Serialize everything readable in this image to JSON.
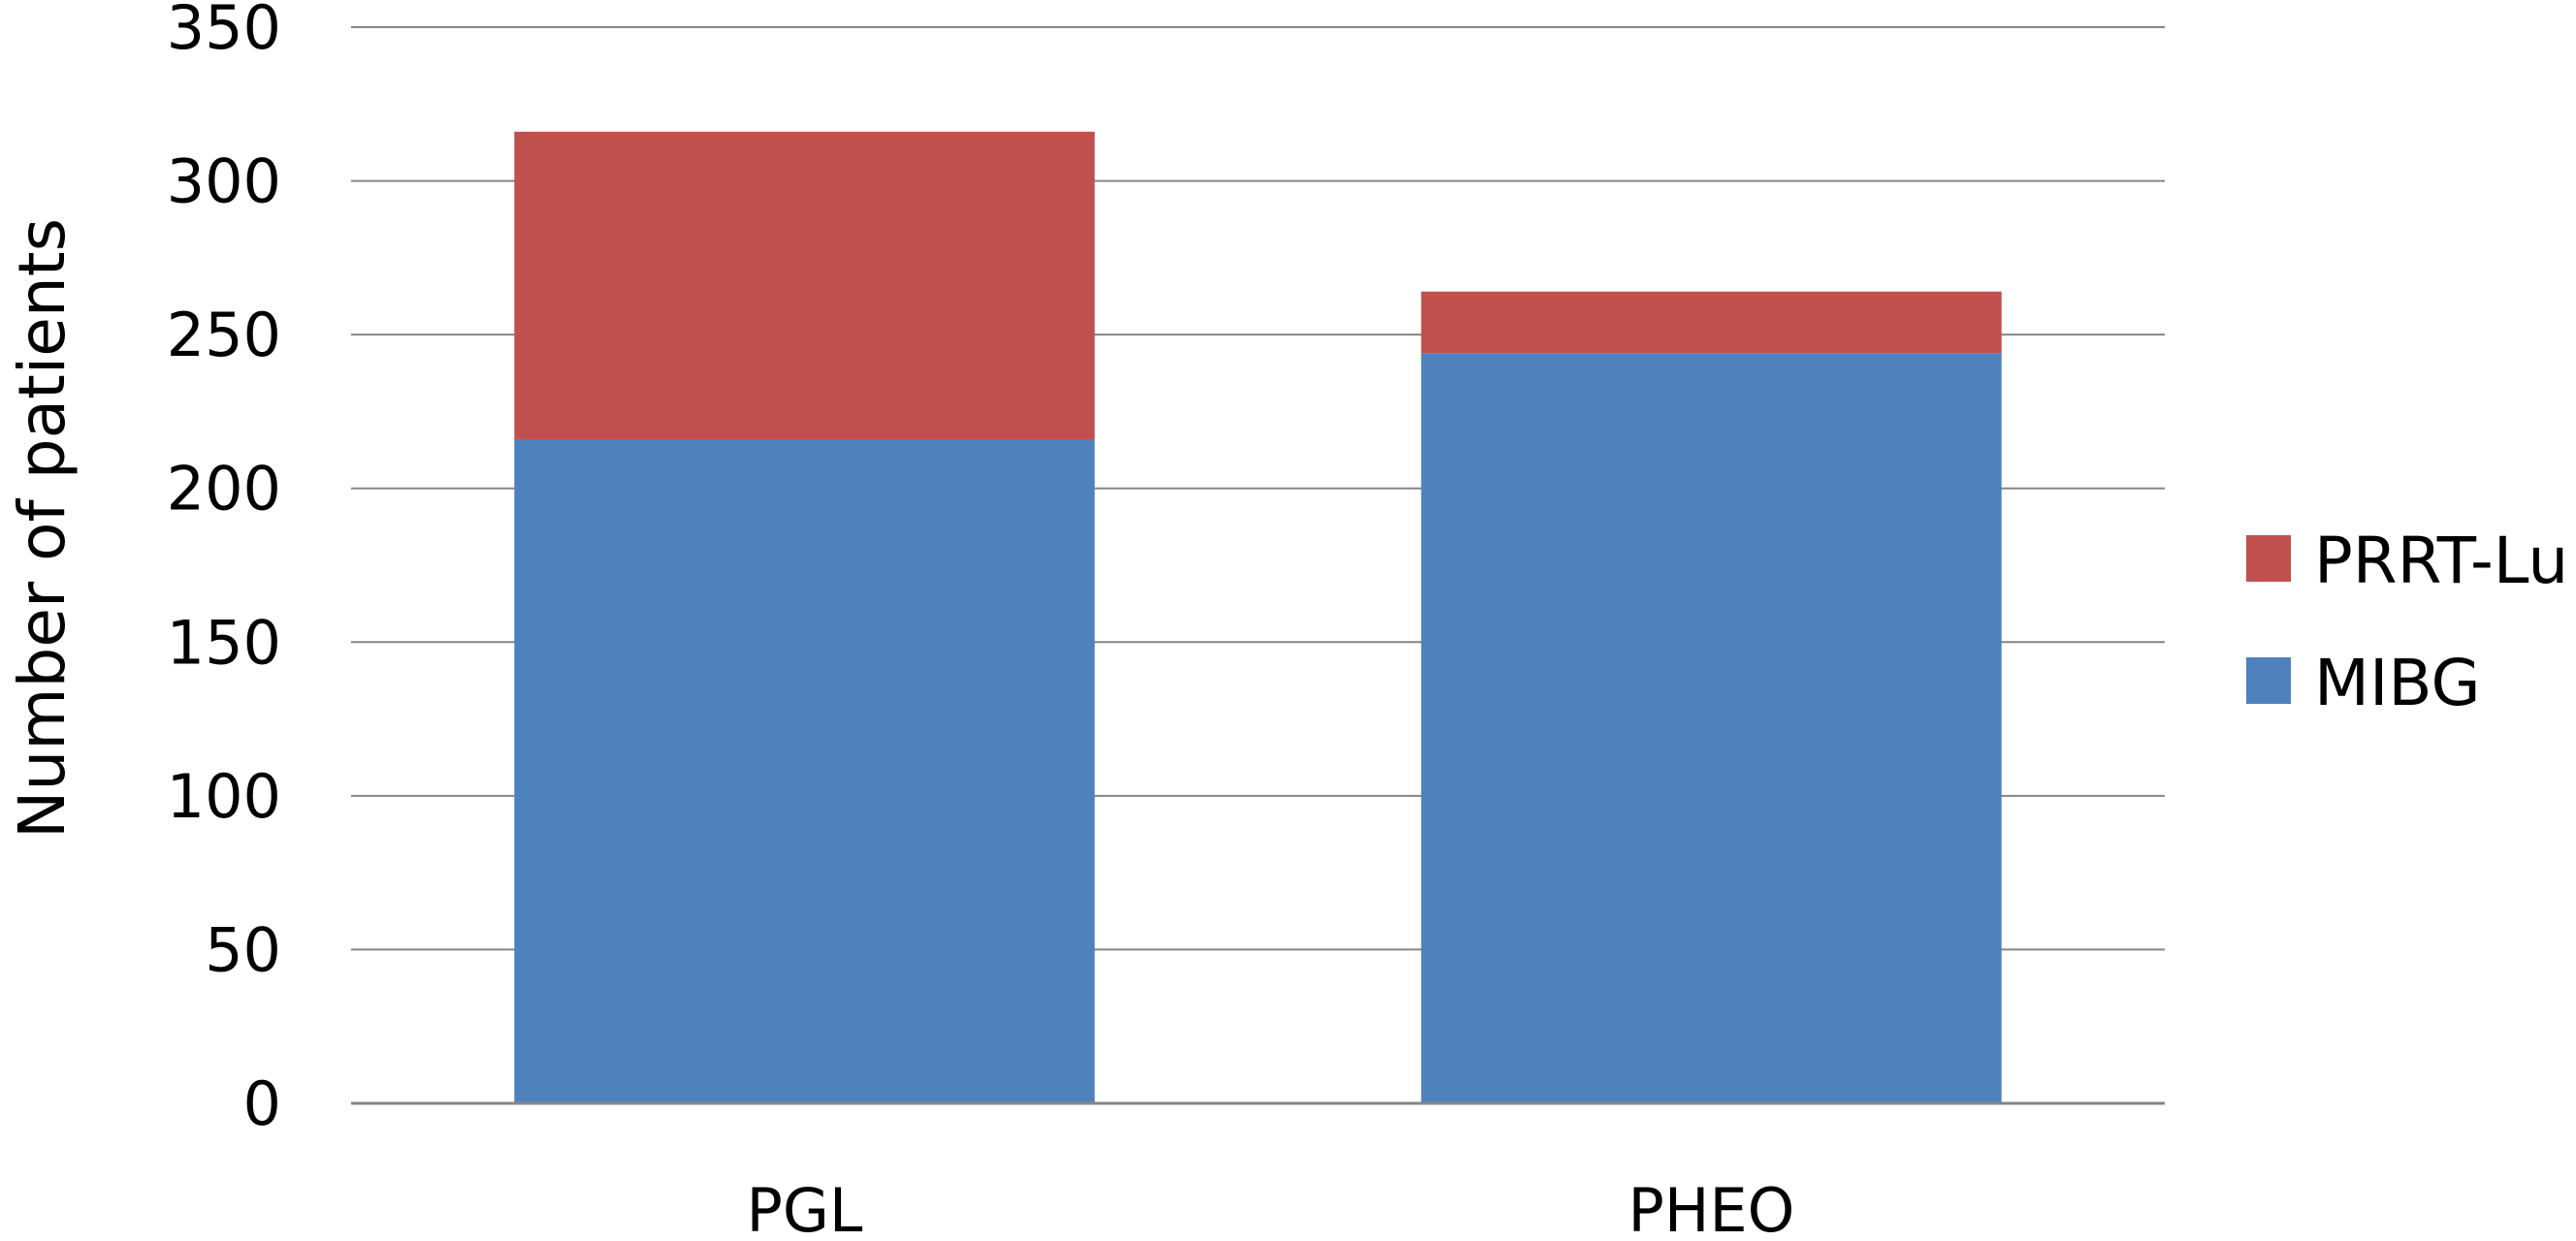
{
  "chart_data": {
    "type": "bar",
    "stacked": true,
    "categories": [
      "PGL",
      "PHEO"
    ],
    "series": [
      {
        "name": "MIBG",
        "values": [
          216,
          244
        ],
        "color": "#4F81BD"
      },
      {
        "name": "PRRT-Lu",
        "values": [
          100,
          20
        ],
        "color": "#C0504D"
      }
    ],
    "ylabel": "Number of patients",
    "xlabel": "",
    "ylim": [
      0,
      350
    ],
    "yticks": [
      0,
      50,
      100,
      150,
      200,
      250,
      300,
      350
    ],
    "grid": true,
    "legend_position": "right",
    "legend_order": [
      "PRRT-Lu",
      "MIBG"
    ]
  }
}
